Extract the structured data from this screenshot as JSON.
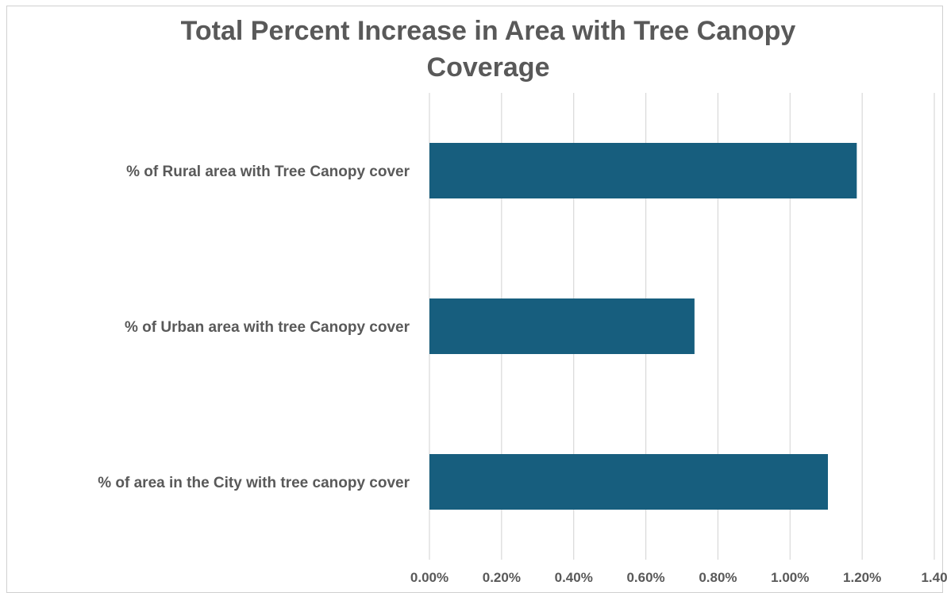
{
  "chart_data": {
    "type": "bar",
    "orientation": "horizontal",
    "title_lines": [
      "Total Percent Increase in Area with Tree Canopy",
      "Coverage"
    ],
    "categories": [
      "% of Rural area with Tree Canopy cover",
      "% of Urban area with tree Canopy cover",
      "% of area in the City with tree canopy cover"
    ],
    "values": [
      1.185,
      0.735,
      1.105
    ],
    "xlim": [
      0,
      1.4
    ],
    "xticks": [
      0,
      0.2,
      0.4,
      0.6,
      0.8,
      1.0,
      1.2,
      1.4
    ],
    "xtick_labels": [
      "0.00%",
      "0.20%",
      "0.40%",
      "0.60%",
      "0.80%",
      "1.00%",
      "1.20%",
      "1.40"
    ],
    "value_unit": "percent",
    "grid": "vertical",
    "legend": "none",
    "bar_color": "#175E7E",
    "grid_color": "#D9D9D9"
  }
}
